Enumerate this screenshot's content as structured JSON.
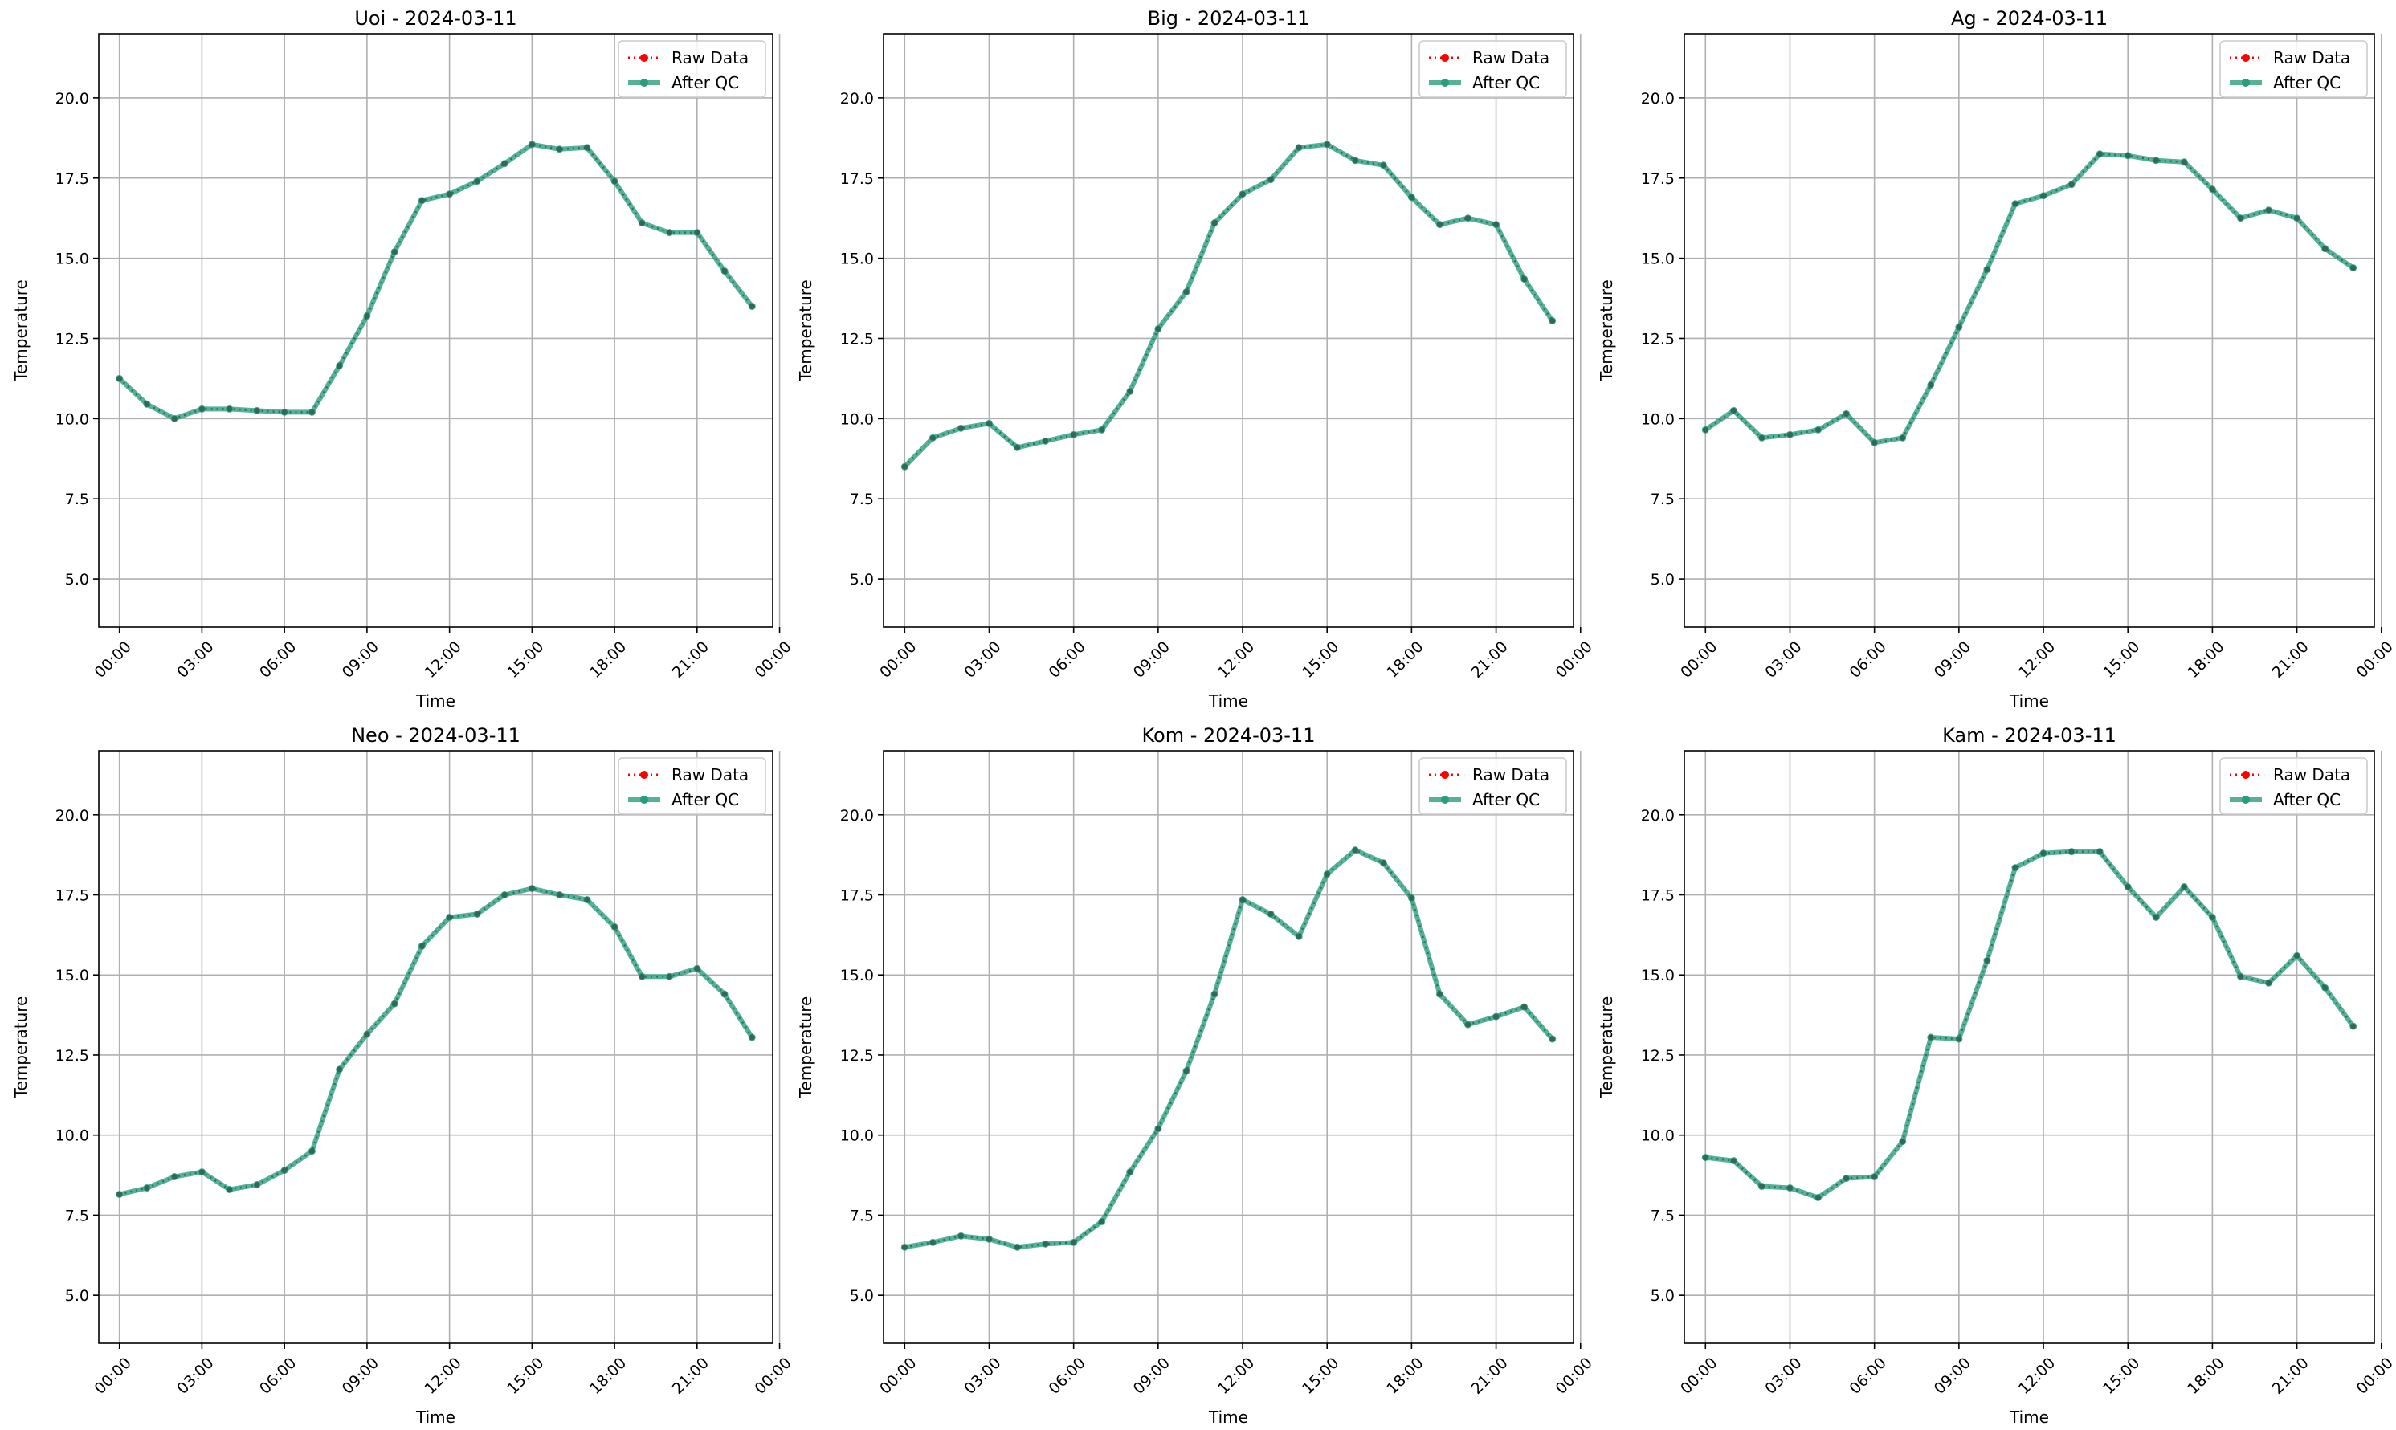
{
  "chart_data": [
    {
      "type": "line",
      "title": "Uoi - 2024-03-11",
      "xlabel": "Time",
      "ylabel": "Temperature",
      "ylim": [
        3.5,
        22
      ],
      "xlim": [
        -0.75,
        23.75
      ],
      "yticks": [
        5.0,
        7.5,
        10.0,
        12.5,
        15.0,
        17.5,
        20.0
      ],
      "ytick_labels": [
        "5.0",
        "7.5",
        "10.0",
        "12.5",
        "15.0",
        "17.5",
        "20.0"
      ],
      "xticks": [
        0,
        3,
        6,
        9,
        12,
        15,
        18,
        21,
        24
      ],
      "xtick_labels": [
        "00:00",
        "03:00",
        "06:00",
        "09:00",
        "12:00",
        "15:00",
        "18:00",
        "21:00",
        "00:00"
      ],
      "grid": true,
      "legend_position": "top-right",
      "x": [
        "00:00",
        "01:00",
        "02:00",
        "03:00",
        "04:00",
        "05:00",
        "06:00",
        "07:00",
        "08:00",
        "09:00",
        "10:00",
        "11:00",
        "12:00",
        "13:00",
        "14:00",
        "15:00",
        "16:00",
        "17:00",
        "18:00",
        "19:00",
        "20:00",
        "21:00",
        "22:00",
        "23:00"
      ],
      "series": [
        {
          "name": "Raw Data",
          "color": "#ff0000",
          "values": [
            11.25,
            10.45,
            10.0,
            10.3,
            10.3,
            10.25,
            10.2,
            10.2,
            11.65,
            13.2,
            15.2,
            16.8,
            17.0,
            17.4,
            17.95,
            18.55,
            18.4,
            18.45,
            17.4,
            16.1,
            15.8,
            15.8,
            14.6,
            13.5
          ]
        },
        {
          "name": "After QC",
          "color": "#2a9d7e",
          "values": [
            11.25,
            10.45,
            10.0,
            10.3,
            10.3,
            10.25,
            10.2,
            10.2,
            11.65,
            13.2,
            15.2,
            16.8,
            17.0,
            17.4,
            17.95,
            18.55,
            18.4,
            18.45,
            17.4,
            16.1,
            15.8,
            15.8,
            14.6,
            13.5
          ]
        }
      ]
    },
    {
      "type": "line",
      "title": "Big - 2024-03-11",
      "xlabel": "Time",
      "ylabel": "Temperature",
      "ylim": [
        3.5,
        22
      ],
      "xlim": [
        -0.75,
        23.75
      ],
      "yticks": [
        5.0,
        7.5,
        10.0,
        12.5,
        15.0,
        17.5,
        20.0
      ],
      "ytick_labels": [
        "5.0",
        "7.5",
        "10.0",
        "12.5",
        "15.0",
        "17.5",
        "20.0"
      ],
      "xticks": [
        0,
        3,
        6,
        9,
        12,
        15,
        18,
        21,
        24
      ],
      "xtick_labels": [
        "00:00",
        "03:00",
        "06:00",
        "09:00",
        "12:00",
        "15:00",
        "18:00",
        "21:00",
        "00:00"
      ],
      "grid": true,
      "legend_position": "top-right",
      "x": [
        "00:00",
        "01:00",
        "02:00",
        "03:00",
        "04:00",
        "05:00",
        "06:00",
        "07:00",
        "08:00",
        "09:00",
        "10:00",
        "11:00",
        "12:00",
        "13:00",
        "14:00",
        "15:00",
        "16:00",
        "17:00",
        "18:00",
        "19:00",
        "20:00",
        "21:00",
        "22:00",
        "23:00"
      ],
      "series": [
        {
          "name": "Raw Data",
          "color": "#ff0000",
          "values": [
            8.5,
            9.4,
            9.7,
            9.85,
            9.1,
            9.3,
            9.5,
            9.65,
            10.85,
            12.8,
            13.95,
            16.1,
            17.0,
            17.45,
            18.45,
            18.55,
            18.05,
            17.9,
            16.9,
            16.05,
            16.25,
            16.05,
            14.35,
            13.05
          ]
        },
        {
          "name": "After QC",
          "color": "#2a9d7e",
          "values": [
            8.5,
            9.4,
            9.7,
            9.85,
            9.1,
            9.3,
            9.5,
            9.65,
            10.85,
            12.8,
            13.95,
            16.1,
            17.0,
            17.45,
            18.45,
            18.55,
            18.05,
            17.9,
            16.9,
            16.05,
            16.25,
            16.05,
            14.35,
            13.05
          ]
        }
      ]
    },
    {
      "type": "line",
      "title": "Ag - 2024-03-11",
      "xlabel": "Time",
      "ylabel": "Temperature",
      "ylim": [
        3.5,
        22
      ],
      "xlim": [
        -0.75,
        23.75
      ],
      "yticks": [
        5.0,
        7.5,
        10.0,
        12.5,
        15.0,
        17.5,
        20.0
      ],
      "ytick_labels": [
        "5.0",
        "7.5",
        "10.0",
        "12.5",
        "15.0",
        "17.5",
        "20.0"
      ],
      "xticks": [
        0,
        3,
        6,
        9,
        12,
        15,
        18,
        21,
        24
      ],
      "xtick_labels": [
        "00:00",
        "03:00",
        "06:00",
        "09:00",
        "12:00",
        "15:00",
        "18:00",
        "21:00",
        "00:00"
      ],
      "grid": true,
      "legend_position": "top-right",
      "x": [
        "00:00",
        "01:00",
        "02:00",
        "03:00",
        "04:00",
        "05:00",
        "06:00",
        "07:00",
        "08:00",
        "09:00",
        "10:00",
        "11:00",
        "12:00",
        "13:00",
        "14:00",
        "15:00",
        "16:00",
        "17:00",
        "18:00",
        "19:00",
        "20:00",
        "21:00",
        "22:00",
        "23:00"
      ],
      "series": [
        {
          "name": "Raw Data",
          "color": "#ff0000",
          "values": [
            9.65,
            10.25,
            9.4,
            9.5,
            9.65,
            10.15,
            9.25,
            9.4,
            11.05,
            12.85,
            14.65,
            16.7,
            16.95,
            17.3,
            18.25,
            18.2,
            18.05,
            18.0,
            17.15,
            16.25,
            16.5,
            16.25,
            15.3,
            14.7
          ]
        },
        {
          "name": "After QC",
          "color": "#2a9d7e",
          "values": [
            9.65,
            10.25,
            9.4,
            9.5,
            9.65,
            10.15,
            9.25,
            9.4,
            11.05,
            12.85,
            14.65,
            16.7,
            16.95,
            17.3,
            18.25,
            18.2,
            18.05,
            18.0,
            17.15,
            16.25,
            16.5,
            16.25,
            15.3,
            14.7
          ]
        }
      ]
    },
    {
      "type": "line",
      "title": "Neo - 2024-03-11",
      "xlabel": "Time",
      "ylabel": "Temperature",
      "ylim": [
        3.5,
        22
      ],
      "xlim": [
        -0.75,
        23.75
      ],
      "yticks": [
        5.0,
        7.5,
        10.0,
        12.5,
        15.0,
        17.5,
        20.0
      ],
      "ytick_labels": [
        "5.0",
        "7.5",
        "10.0",
        "12.5",
        "15.0",
        "17.5",
        "20.0"
      ],
      "xticks": [
        0,
        3,
        6,
        9,
        12,
        15,
        18,
        21,
        24
      ],
      "xtick_labels": [
        "00:00",
        "03:00",
        "06:00",
        "09:00",
        "12:00",
        "15:00",
        "18:00",
        "21:00",
        "00:00"
      ],
      "grid": true,
      "legend_position": "top-right",
      "x": [
        "00:00",
        "01:00",
        "02:00",
        "03:00",
        "04:00",
        "05:00",
        "06:00",
        "07:00",
        "08:00",
        "09:00",
        "10:00",
        "11:00",
        "12:00",
        "13:00",
        "14:00",
        "15:00",
        "16:00",
        "17:00",
        "18:00",
        "19:00",
        "20:00",
        "21:00",
        "22:00",
        "23:00"
      ],
      "series": [
        {
          "name": "Raw Data",
          "color": "#ff0000",
          "values": [
            8.15,
            8.35,
            8.7,
            8.85,
            8.3,
            8.45,
            8.9,
            9.5,
            12.05,
            13.15,
            14.1,
            15.9,
            16.8,
            16.9,
            17.5,
            17.7,
            17.5,
            17.35,
            16.5,
            14.95,
            14.95,
            15.2,
            14.4,
            13.05
          ]
        },
        {
          "name": "After QC",
          "color": "#2a9d7e",
          "values": [
            8.15,
            8.35,
            8.7,
            8.85,
            8.3,
            8.45,
            8.9,
            9.5,
            12.05,
            13.15,
            14.1,
            15.9,
            16.8,
            16.9,
            17.5,
            17.7,
            17.5,
            17.35,
            16.5,
            14.95,
            14.95,
            15.2,
            14.4,
            13.05
          ]
        }
      ]
    },
    {
      "type": "line",
      "title": "Kom - 2024-03-11",
      "xlabel": "Time",
      "ylabel": "Temperature",
      "ylim": [
        3.5,
        22
      ],
      "xlim": [
        -0.75,
        23.75
      ],
      "yticks": [
        5.0,
        7.5,
        10.0,
        12.5,
        15.0,
        17.5,
        20.0
      ],
      "ytick_labels": [
        "5.0",
        "7.5",
        "10.0",
        "12.5",
        "15.0",
        "17.5",
        "20.0"
      ],
      "xticks": [
        0,
        3,
        6,
        9,
        12,
        15,
        18,
        21,
        24
      ],
      "xtick_labels": [
        "00:00",
        "03:00",
        "06:00",
        "09:00",
        "12:00",
        "15:00",
        "18:00",
        "21:00",
        "00:00"
      ],
      "grid": true,
      "legend_position": "top-right",
      "x": [
        "00:00",
        "01:00",
        "02:00",
        "03:00",
        "04:00",
        "05:00",
        "06:00",
        "07:00",
        "08:00",
        "09:00",
        "10:00",
        "11:00",
        "12:00",
        "13:00",
        "14:00",
        "15:00",
        "16:00",
        "17:00",
        "18:00",
        "19:00",
        "20:00",
        "21:00",
        "22:00",
        "23:00"
      ],
      "series": [
        {
          "name": "Raw Data",
          "color": "#ff0000",
          "values": [
            6.5,
            6.65,
            6.85,
            6.75,
            6.5,
            6.6,
            6.65,
            7.3,
            8.85,
            10.2,
            12.0,
            14.4,
            17.35,
            16.9,
            16.2,
            18.15,
            18.9,
            18.5,
            17.4,
            14.4,
            13.45,
            13.7,
            14.0,
            13.0
          ]
        },
        {
          "name": "After QC",
          "color": "#2a9d7e",
          "values": [
            6.5,
            6.65,
            6.85,
            6.75,
            6.5,
            6.6,
            6.65,
            7.3,
            8.85,
            10.2,
            12.0,
            14.4,
            17.35,
            16.9,
            16.2,
            18.15,
            18.9,
            18.5,
            17.4,
            14.4,
            13.45,
            13.7,
            14.0,
            13.0
          ]
        }
      ]
    },
    {
      "type": "line",
      "title": "Kam - 2024-03-11",
      "xlabel": "Time",
      "ylabel": "Temperature",
      "ylim": [
        3.5,
        22
      ],
      "xlim": [
        -0.75,
        23.75
      ],
      "yticks": [
        5.0,
        7.5,
        10.0,
        12.5,
        15.0,
        17.5,
        20.0
      ],
      "ytick_labels": [
        "5.0",
        "7.5",
        "10.0",
        "12.5",
        "15.0",
        "17.5",
        "20.0"
      ],
      "xticks": [
        0,
        3,
        6,
        9,
        12,
        15,
        18,
        21,
        24
      ],
      "xtick_labels": [
        "00:00",
        "03:00",
        "06:00",
        "09:00",
        "12:00",
        "15:00",
        "18:00",
        "21:00",
        "00:00"
      ],
      "grid": true,
      "legend_position": "top-right",
      "x": [
        "00:00",
        "01:00",
        "02:00",
        "03:00",
        "04:00",
        "05:00",
        "06:00",
        "07:00",
        "08:00",
        "09:00",
        "10:00",
        "11:00",
        "12:00",
        "13:00",
        "14:00",
        "15:00",
        "16:00",
        "17:00",
        "18:00",
        "19:00",
        "20:00",
        "21:00",
        "22:00",
        "23:00"
      ],
      "series": [
        {
          "name": "Raw Data",
          "color": "#ff0000",
          "values": [
            9.3,
            9.2,
            8.4,
            8.35,
            8.05,
            8.65,
            8.7,
            9.8,
            13.05,
            13.0,
            15.45,
            18.35,
            18.8,
            18.85,
            18.85,
            17.75,
            16.8,
            17.75,
            16.8,
            14.95,
            14.75,
            15.6,
            14.6,
            13.4
          ]
        },
        {
          "name": "After QC",
          "color": "#2a9d7e",
          "values": [
            9.3,
            9.2,
            8.4,
            8.35,
            8.05,
            8.65,
            8.7,
            9.8,
            13.05,
            13.0,
            15.45,
            18.35,
            18.8,
            18.85,
            18.85,
            17.75,
            16.8,
            17.75,
            16.8,
            14.95,
            14.75,
            15.6,
            14.6,
            13.4
          ]
        }
      ]
    }
  ]
}
